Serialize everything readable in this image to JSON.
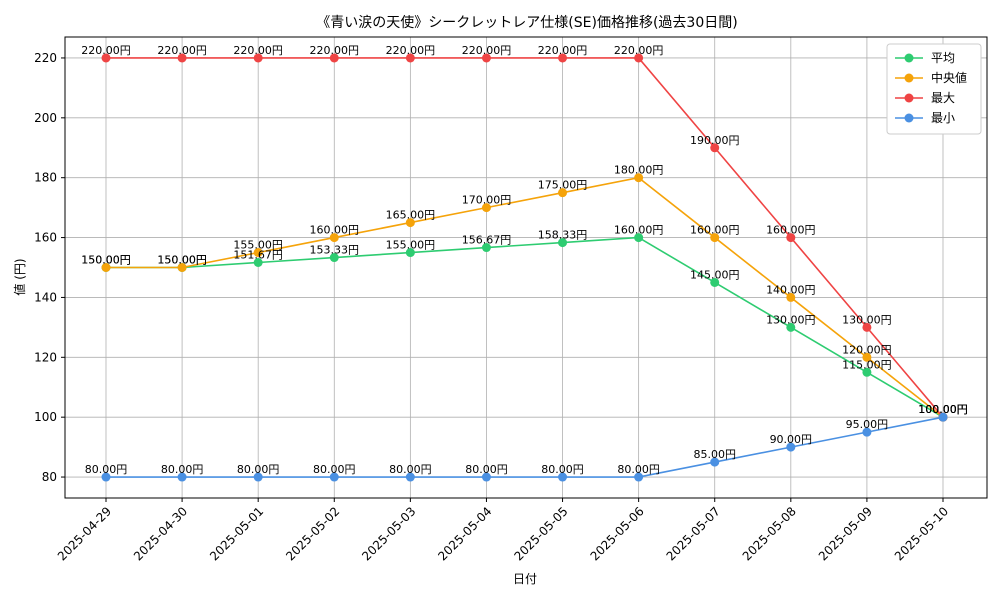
{
  "chart_data": {
    "type": "line",
    "title": "《青い涙の天使》シークレットレア仕様(SE)価格推移(過去30日間)",
    "xlabel": "日付",
    "ylabel": "値 (円)",
    "categories": [
      "2025-04-29",
      "2025-04-30",
      "2025-05-01",
      "2025-05-02",
      "2025-05-03",
      "2025-05-04",
      "2025-05-05",
      "2025-05-06",
      "2025-05-07",
      "2025-05-08",
      "2025-05-09",
      "2025-05-10"
    ],
    "ylim": [
      73,
      227
    ],
    "yticks": [
      80,
      100,
      120,
      140,
      160,
      180,
      200,
      220
    ],
    "grid": true,
    "legend_position": "top-right",
    "label_suffix": "円",
    "series": [
      {
        "name": "平均",
        "color": "#2ecc71",
        "values": [
          150,
          150,
          151.67,
          153.33,
          155,
          156.67,
          158.33,
          160,
          145,
          130,
          115,
          100
        ]
      },
      {
        "name": "中央値",
        "color": "#f5a30a",
        "values": [
          150,
          150,
          155,
          160,
          165,
          170,
          175,
          180,
          160,
          140,
          120,
          100
        ]
      },
      {
        "name": "最大",
        "color": "#ef4444",
        "values": [
          220,
          220,
          220,
          220,
          220,
          220,
          220,
          220,
          190,
          160,
          130,
          100
        ]
      },
      {
        "name": "最小",
        "color": "#4a90e2",
        "values": [
          80,
          80,
          80,
          80,
          80,
          80,
          80,
          80,
          85,
          90,
          95,
          100
        ]
      }
    ]
  }
}
